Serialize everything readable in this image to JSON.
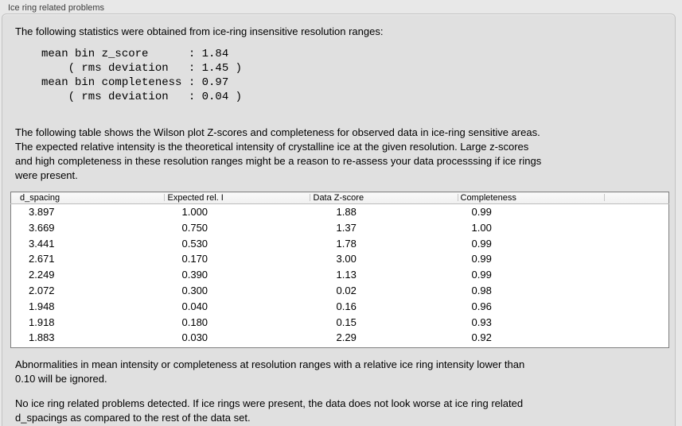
{
  "section": {
    "title": "Ice ring related problems"
  },
  "intro_text": "The following statistics were obtained from ice-ring insensitive resolution ranges:",
  "stats_block": "mean bin z_score      : 1.84\n    ( rms deviation   : 1.45 )\nmean bin completeness : 0.97\n    ( rms deviation   : 0.04 )",
  "stats": {
    "mean_bin_z_score": "1.84",
    "z_score_rms_deviation": "1.45",
    "mean_bin_completeness": "0.97",
    "completeness_rms_deviation": "0.04"
  },
  "table_description": "The following table shows the Wilson plot Z-scores and completeness for observed data in ice-ring sensitive areas.\nThe expected relative intensity is the theoretical intensity of crystalline ice at the given resolution. Large z-scores\nand high completeness in these resolution ranges might be a reason to re-assess your data processsing if ice rings\nwere present.",
  "table": {
    "headers": [
      "d_spacing",
      "Expected rel. I",
      "Data Z-score",
      "Completeness",
      ""
    ],
    "rows": [
      [
        "3.897",
        "1.000",
        "1.88",
        "0.99"
      ],
      [
        "3.669",
        "0.750",
        "1.37",
        "1.00"
      ],
      [
        "3.441",
        "0.530",
        "1.78",
        "0.99"
      ],
      [
        "2.671",
        "0.170",
        "3.00",
        "0.99"
      ],
      [
        "2.249",
        "0.390",
        "1.13",
        "0.99"
      ],
      [
        "2.072",
        "0.300",
        "0.02",
        "0.98"
      ],
      [
        "1.948",
        "0.040",
        "0.16",
        "0.96"
      ],
      [
        "1.918",
        "0.180",
        "0.15",
        "0.93"
      ],
      [
        "1.883",
        "0.030",
        "2.29",
        "0.92"
      ]
    ]
  },
  "ignore_note": "Abnormalities in mean intensity or completeness at resolution ranges with a relative ice ring intensity lower than\n0.10 will be ignored.",
  "conclusion_text": "No ice ring related problems detected. If ice rings were present, the data does not look worse at ice ring related\nd_spacings as compared to the rest of the data set.",
  "colors": {
    "page_bg": "#e8e8e8",
    "panel_bg": "#e0e0e0",
    "panel_border": "#c2c2c2",
    "table_bg": "#ffffff",
    "table_border": "#7f7f7f",
    "table_header_bg": "#f4f4f4",
    "text": "#000000"
  }
}
